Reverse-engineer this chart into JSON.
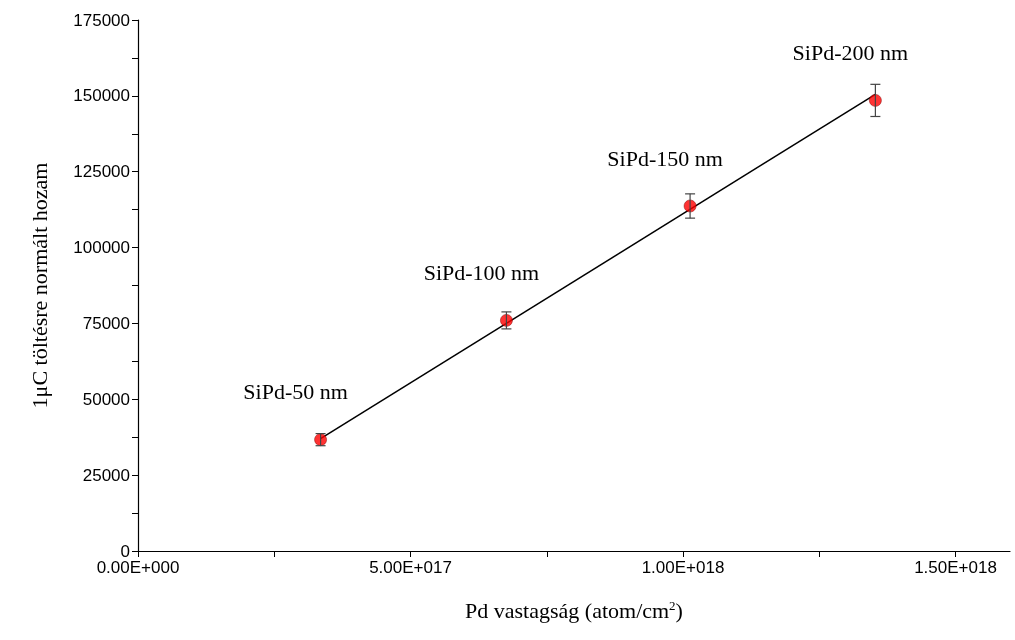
{
  "chart_data": {
    "type": "scatter",
    "xlabel": "Pd vastagság (atom/cm$^{2}$)",
    "ylabel": "1μC töltésre normált hozam",
    "x": [
      3.35e+17,
      6.76e+17,
      1.013e+18,
      1.353e+18
    ],
    "series": [
      {
        "color": "#ff0000",
        "values": [
          36700,
          76000,
          113700,
          148500
        ],
        "errors": [
          2000,
          2800,
          4000,
          5300
        ],
        "marker": "circle"
      },
      {
        "type": "line",
        "color": "#000000",
        "x": [
          3.35e+17,
          1.353e+18
        ],
        "values": [
          37000,
          150500
        ],
        "marker": "none",
        "line_style": "solid"
      }
    ],
    "xlim": [
      0,
      1.6e+18
    ],
    "ylim": [
      0,
      175000
    ],
    "xticks": [
      {
        "value": 0,
        "label": "0.00E+000"
      },
      {
        "value": 2.5e+17,
        "label": null
      },
      {
        "value": 5e+17,
        "label": "5.00E+017"
      },
      {
        "value": 7.5e+17,
        "label": null
      },
      {
        "value": 1e+18,
        "label": "1.00E+018"
      },
      {
        "value": 1.25e+18,
        "label": null
      },
      {
        "value": 1.5e+18,
        "label": "1.50E+018"
      }
    ],
    "yticks": [
      0,
      {
        "value": 12500,
        "label": null
      },
      25000,
      {
        "value": 37500,
        "label": null
      },
      50000,
      {
        "value": 62500,
        "label": null
      },
      75000,
      {
        "value": 87500,
        "label": null
      },
      100000,
      {
        "value": 112500,
        "label": null
      },
      125000,
      {
        "value": 137500,
        "label": null
      },
      150000,
      {
        "value": 162500,
        "label": null
      },
      175000
    ],
    "annotations": [
      {
        "text": "SiPd-50 nm",
        "x": 3.35e+17,
        "y": 36700
      },
      {
        "text": "SiPd-100 nm",
        "x": 6.76e+17,
        "y": 76000
      },
      {
        "text": "SiPd-150 nm",
        "x": 1.013e+18,
        "y": 113700
      },
      {
        "text": "SiPd-200 nm",
        "x": 1.353e+18,
        "y": 148500
      }
    ],
    "grid": false
  }
}
